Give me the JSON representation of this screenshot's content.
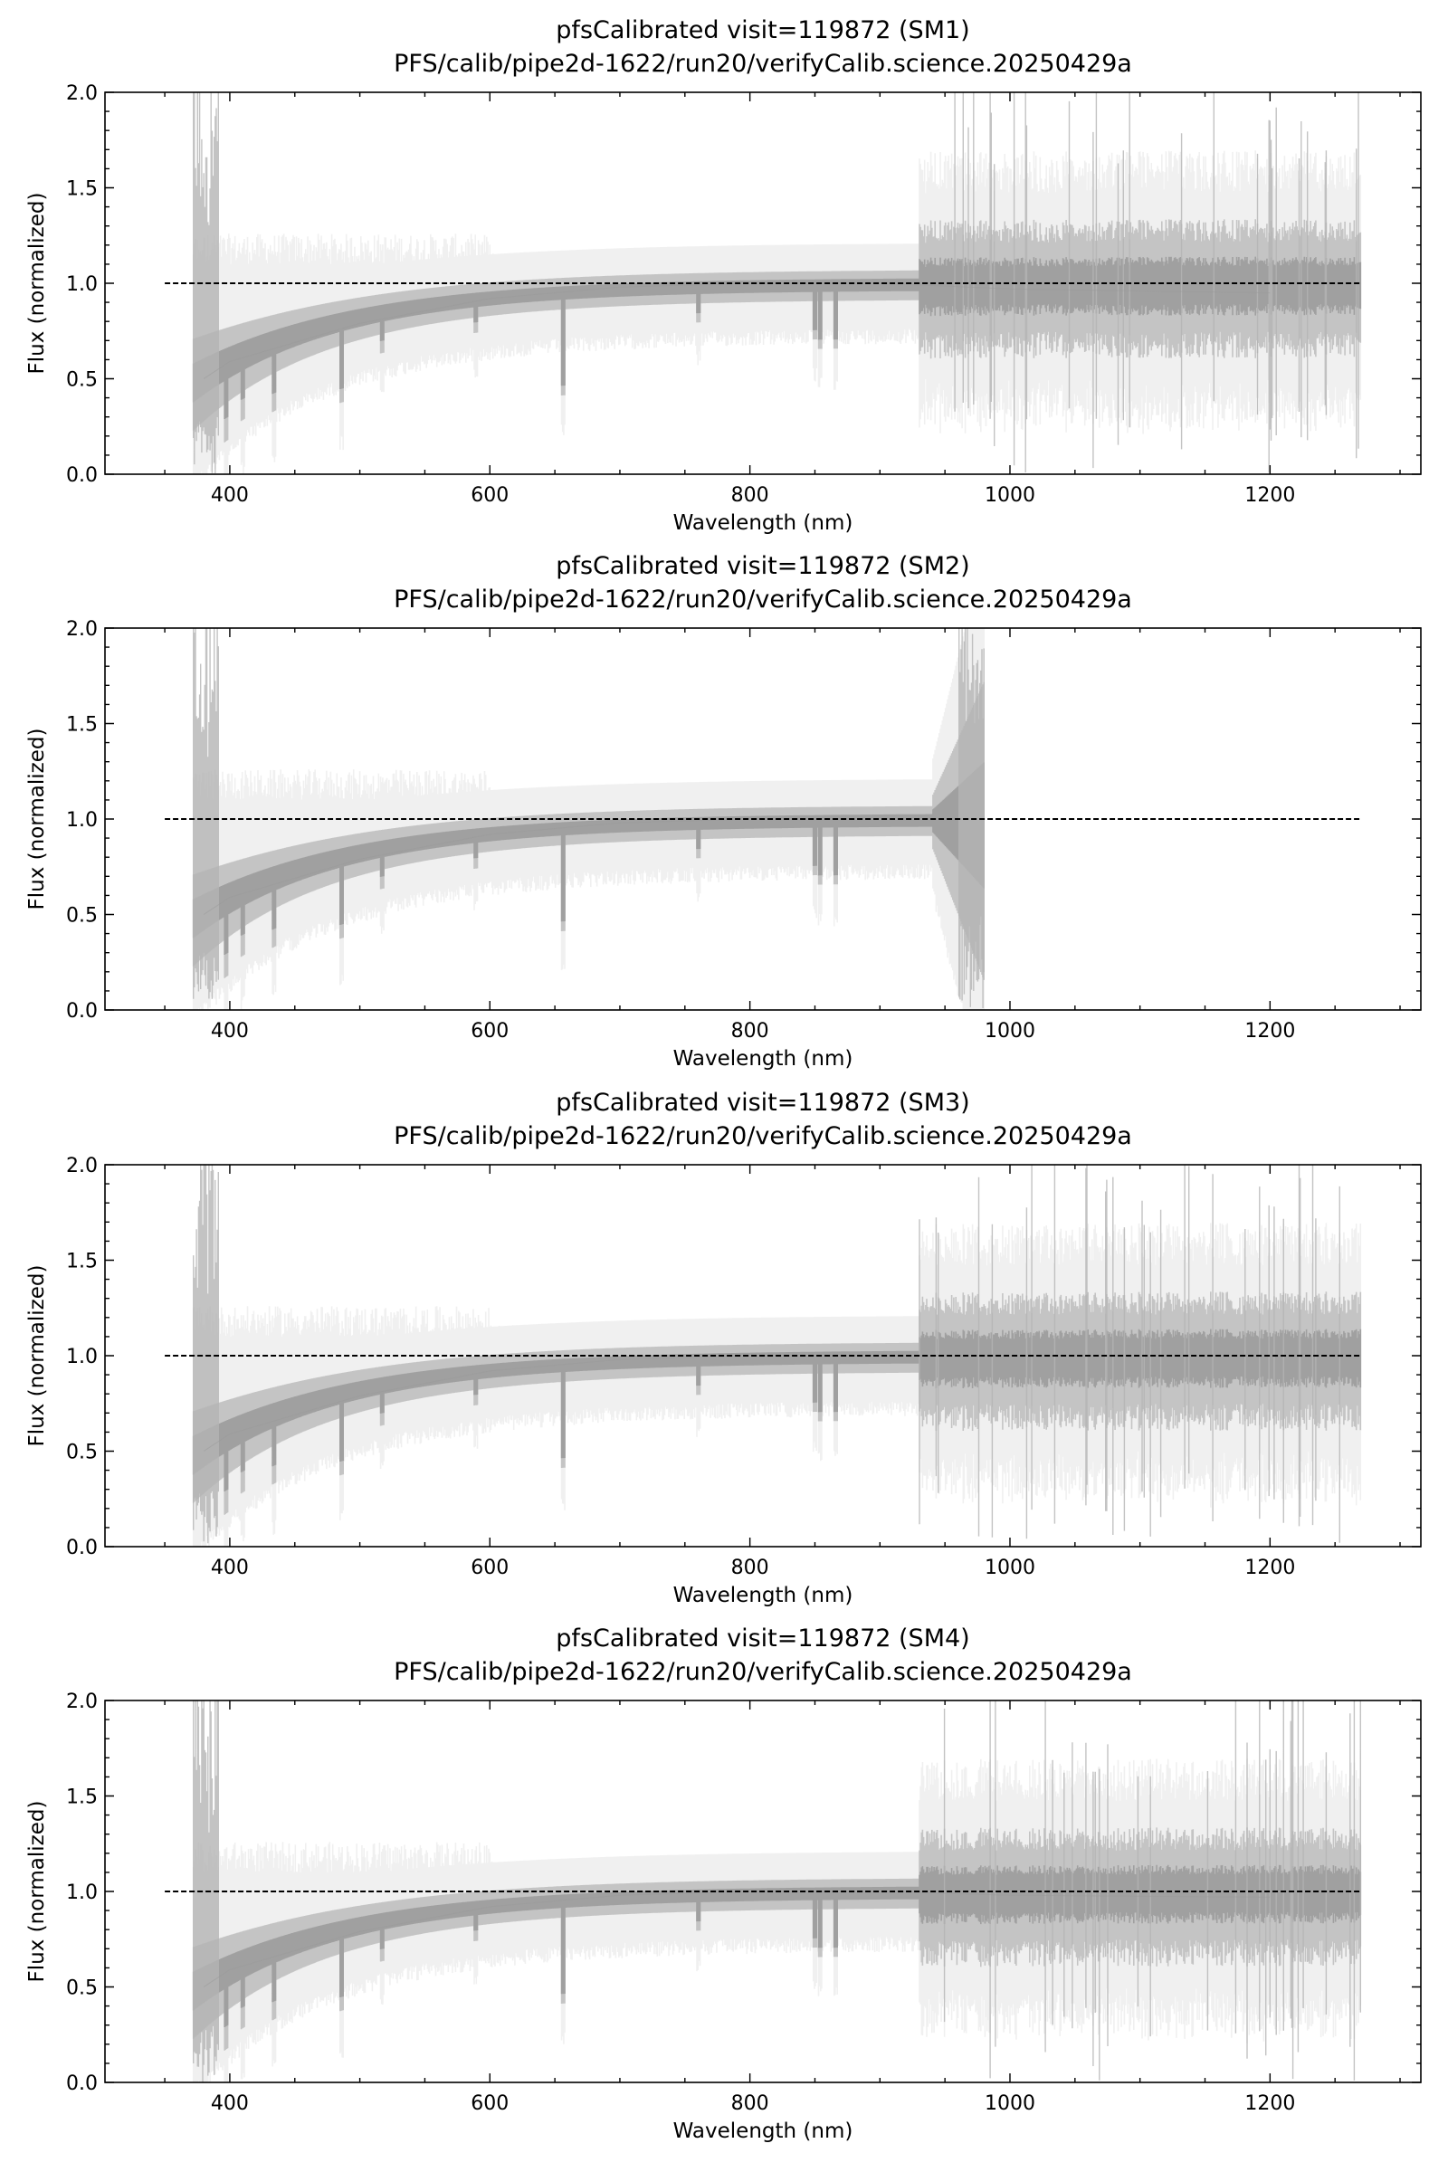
{
  "chart_data": [
    {
      "type": "line",
      "title": "pfsCalibrated visit=119872 (SM1)",
      "subtitle": "PFS/calib/pipe2d-1622/run20/verifyCalib.science.20250429a",
      "xlabel": "Wavelength (nm)",
      "ylabel": "Flux (normalized)",
      "xlim": [
        304,
        1316
      ],
      "ylim": [
        0,
        2
      ],
      "xticks": [
        400,
        600,
        800,
        1000,
        1200
      ],
      "xtick_labels": [
        "400",
        "600",
        "800",
        "1000",
        "1200"
      ],
      "yticks": [
        0,
        0.5,
        1,
        1.5,
        2
      ],
      "ytick_labels": [
        "0.0",
        "0.5",
        "1.0",
        "1.5",
        "2.0"
      ],
      "wavelength_range": [
        372,
        1270
      ],
      "reference_line": {
        "y": 1.0,
        "x": [
          350,
          1270
        ],
        "style": "dashed"
      },
      "noisy_above_nm": 930,
      "median_trend": {
        "x": [
          380,
          400,
          500,
          600,
          700,
          800,
          900,
          1000,
          1200
        ],
        "y": [
          0.5,
          0.59,
          0.79,
          0.92,
          0.98,
          1.0,
          1.0,
          0.97,
          0.95
        ]
      }
    },
    {
      "type": "line",
      "title": "pfsCalibrated visit=119872 (SM2)",
      "subtitle": "PFS/calib/pipe2d-1622/run20/verifyCalib.science.20250429a",
      "xlabel": "Wavelength (nm)",
      "ylabel": "Flux (normalized)",
      "xlim": [
        304,
        1316
      ],
      "ylim": [
        0,
        2
      ],
      "xticks": [
        400,
        600,
        800,
        1000,
        1200
      ],
      "xtick_labels": [
        "400",
        "600",
        "800",
        "1000",
        "1200"
      ],
      "yticks": [
        0,
        0.5,
        1,
        1.5,
        2
      ],
      "ytick_labels": [
        "0.0",
        "0.5",
        "1.0",
        "1.5",
        "2.0"
      ],
      "wavelength_range": [
        372,
        980
      ],
      "reference_line": {
        "y": 1.0,
        "x": [
          350,
          1270
        ],
        "style": "dashed"
      },
      "noisy_above_nm": 2000,
      "median_trend": {
        "x": [
          380,
          400,
          500,
          600,
          700,
          800,
          900,
          970
        ],
        "y": [
          0.5,
          0.59,
          0.79,
          0.92,
          0.98,
          1.0,
          1.0,
          1.0
        ]
      }
    },
    {
      "type": "line",
      "title": "pfsCalibrated visit=119872 (SM3)",
      "subtitle": "PFS/calib/pipe2d-1622/run20/verifyCalib.science.20250429a",
      "xlabel": "Wavelength (nm)",
      "ylabel": "Flux (normalized)",
      "xlim": [
        304,
        1316
      ],
      "ylim": [
        0,
        2
      ],
      "xticks": [
        400,
        600,
        800,
        1000,
        1200
      ],
      "xtick_labels": [
        "400",
        "600",
        "800",
        "1000",
        "1200"
      ],
      "yticks": [
        0,
        0.5,
        1,
        1.5,
        2
      ],
      "ytick_labels": [
        "0.0",
        "0.5",
        "1.0",
        "1.5",
        "2.0"
      ],
      "wavelength_range": [
        372,
        1270
      ],
      "reference_line": {
        "y": 1.0,
        "x": [
          350,
          1270
        ],
        "style": "dashed"
      },
      "noisy_above_nm": 930,
      "median_trend": {
        "x": [
          380,
          400,
          500,
          600,
          700,
          800,
          900,
          1000,
          1200
        ],
        "y": [
          0.5,
          0.59,
          0.79,
          0.92,
          0.98,
          1.0,
          1.0,
          1.0,
          1.0
        ]
      }
    },
    {
      "type": "line",
      "title": "pfsCalibrated visit=119872 (SM4)",
      "subtitle": "PFS/calib/pipe2d-1622/run20/verifyCalib.science.20250429a",
      "xlabel": "Wavelength (nm)",
      "ylabel": "Flux (normalized)",
      "xlim": [
        304,
        1316
      ],
      "ylim": [
        0,
        2
      ],
      "xticks": [
        400,
        600,
        800,
        1000,
        1200
      ],
      "xtick_labels": [
        "400",
        "600",
        "800",
        "1000",
        "1200"
      ],
      "yticks": [
        0,
        0.5,
        1,
        1.5,
        2
      ],
      "ytick_labels": [
        "0.0",
        "0.5",
        "1.0",
        "1.5",
        "2.0"
      ],
      "wavelength_range": [
        372,
        1270
      ],
      "reference_line": {
        "y": 1.0,
        "x": [
          350,
          1270
        ],
        "style": "dashed"
      },
      "noisy_above_nm": 930,
      "median_trend": {
        "x": [
          380,
          400,
          500,
          600,
          700,
          800,
          900,
          1000,
          1200
        ],
        "y": [
          0.5,
          0.59,
          0.79,
          0.92,
          0.98,
          1.0,
          1.0,
          0.98,
          0.97
        ]
      }
    }
  ],
  "colors": {
    "spectra": "#a0a0a0",
    "spectra_light": "#e6e6e6",
    "reference": "#000000",
    "axes": "#000000"
  }
}
